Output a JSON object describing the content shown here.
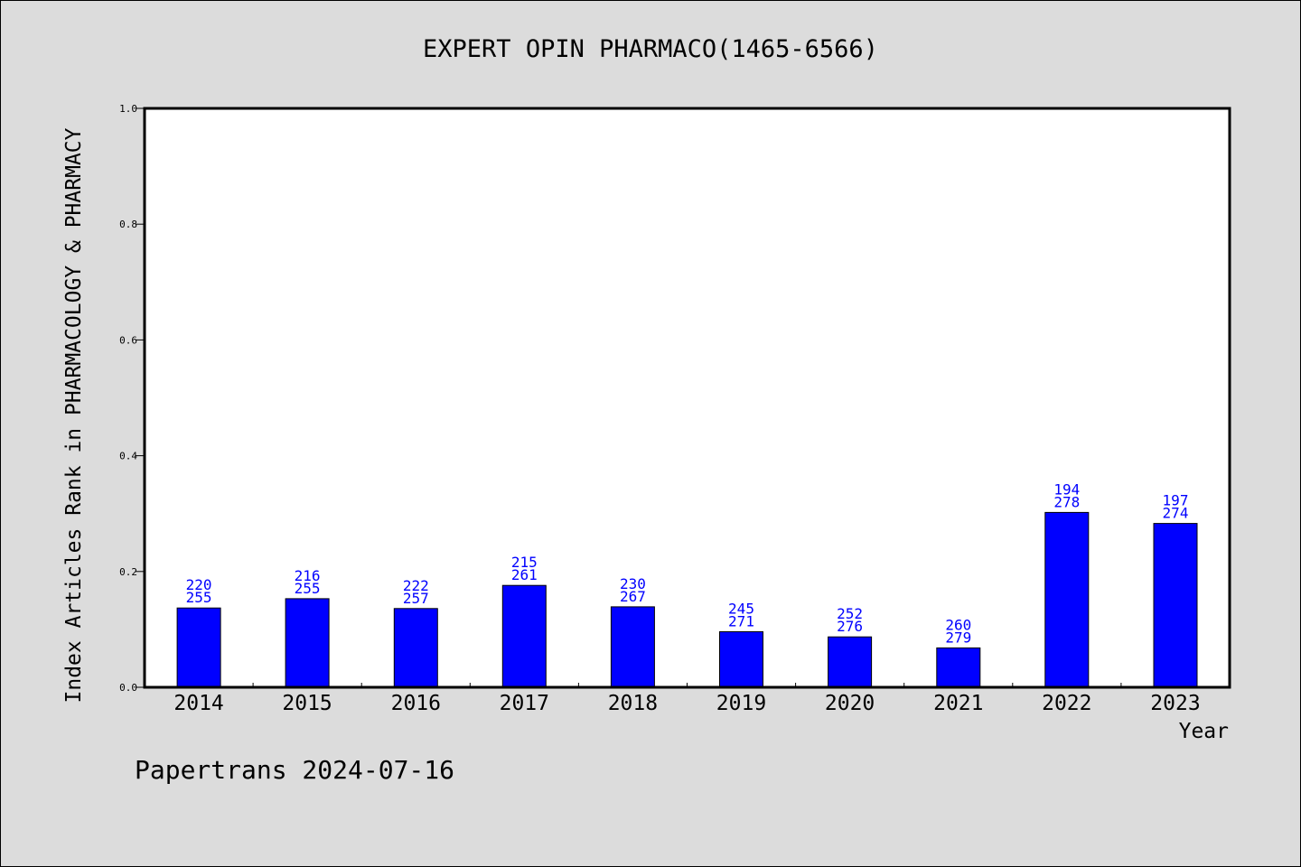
{
  "chart_data": {
    "type": "bar",
    "title": "EXPERT OPIN PHARMACO(1465-6566)",
    "xlabel": "Year",
    "ylabel": "Index Articles Rank in PHARMACOLOGY & PHARMACY",
    "ylim": [
      0,
      1.0
    ],
    "yticks": [
      "0.0",
      "0.2",
      "0.4",
      "0.6",
      "0.8",
      "1.0"
    ],
    "categories": [
      "2014",
      "2015",
      "2016",
      "2017",
      "2018",
      "2019",
      "2020",
      "2021",
      "2022",
      "2023"
    ],
    "values": [
      0.137,
      0.153,
      0.136,
      0.176,
      0.139,
      0.096,
      0.087,
      0.068,
      0.302,
      0.283
    ],
    "label_top": [
      "220",
      "216",
      "222",
      "215",
      "230",
      "245",
      "252",
      "260",
      "194",
      "197"
    ],
    "label_bottom": [
      "255",
      "255",
      "257",
      "261",
      "267",
      "271",
      "276",
      "279",
      "278",
      "274"
    ],
    "bar_color": "#0000ff",
    "label_color": "#0000ff",
    "grid": false
  },
  "footer": "Papertrans 2024-07-16"
}
